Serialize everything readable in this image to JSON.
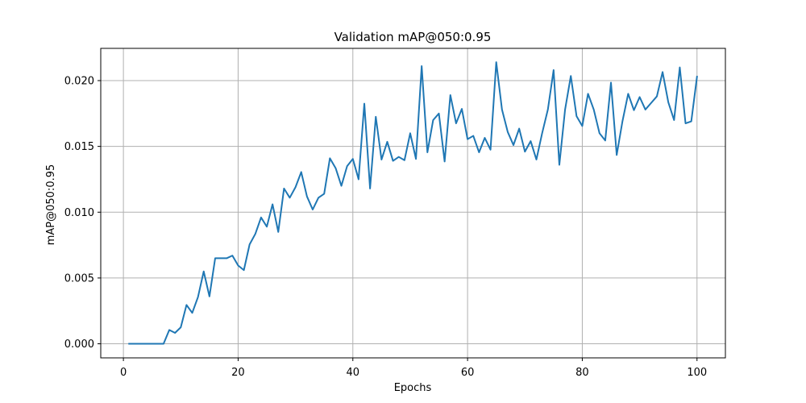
{
  "chart_data": {
    "type": "line",
    "title": "Validation mAP@050:0.95",
    "xlabel": "Epochs",
    "ylabel": "mAP@050:0.95",
    "xlim": [
      -3.95,
      104.95
    ],
    "ylim": [
      -0.00107,
      0.02245
    ],
    "x_ticks": [
      0,
      20,
      40,
      60,
      80,
      100
    ],
    "x_tick_labels": [
      "0",
      "20",
      "40",
      "60",
      "80",
      "100"
    ],
    "y_ticks": [
      0.0,
      0.005,
      0.01,
      0.015,
      0.02
    ],
    "y_tick_labels": [
      "0.000",
      "0.005",
      "0.010",
      "0.015",
      "0.020"
    ],
    "grid": true,
    "series": [
      {
        "color": "#1f77b4",
        "x": [
          1,
          2,
          3,
          4,
          5,
          6,
          7,
          8,
          9,
          10,
          11,
          12,
          13,
          14,
          15,
          16,
          17,
          18,
          19,
          20,
          21,
          22,
          23,
          24,
          25,
          26,
          27,
          28,
          29,
          30,
          31,
          32,
          33,
          34,
          35,
          36,
          37,
          38,
          39,
          40,
          41,
          42,
          43,
          44,
          45,
          46,
          47,
          48,
          49,
          50,
          51,
          52,
          53,
          54,
          55,
          56,
          57,
          58,
          59,
          60,
          61,
          62,
          63,
          64,
          65,
          66,
          67,
          68,
          69,
          70,
          71,
          72,
          73,
          74,
          75,
          76,
          77,
          78,
          79,
          80,
          81,
          82,
          83,
          84,
          85,
          86,
          87,
          88,
          89,
          90,
          91,
          92,
          93,
          94,
          95,
          96,
          97,
          98,
          99,
          100
        ],
        "y": [
          0,
          0,
          0,
          0,
          0,
          0,
          0,
          0.00105,
          0.00083,
          0.00125,
          0.00295,
          0.00235,
          0.00355,
          0.0055,
          0.0036,
          0.0065,
          0.0065,
          0.0065,
          0.0067,
          0.00595,
          0.0056,
          0.00755,
          0.00835,
          0.0096,
          0.0089,
          0.0106,
          0.0085,
          0.0118,
          0.0111,
          0.0119,
          0.01305,
          0.0112,
          0.0102,
          0.0111,
          0.0114,
          0.0141,
          0.01335,
          0.012,
          0.0135,
          0.01405,
          0.0125,
          0.01825,
          0.0118,
          0.01725,
          0.014,
          0.01535,
          0.0139,
          0.0142,
          0.01395,
          0.016,
          0.01405,
          0.0211,
          0.01455,
          0.017,
          0.0175,
          0.01385,
          0.0189,
          0.01675,
          0.01785,
          0.01555,
          0.0158,
          0.01455,
          0.01565,
          0.01475,
          0.0214,
          0.0178,
          0.0161,
          0.0151,
          0.01635,
          0.0146,
          0.0154,
          0.014,
          0.016,
          0.0178,
          0.0208,
          0.0136,
          0.0178,
          0.02035,
          0.0173,
          0.01655,
          0.019,
          0.0178,
          0.016,
          0.01545,
          0.01985,
          0.01435,
          0.0169,
          0.019,
          0.01775,
          0.01875,
          0.0178,
          0.0183,
          0.0188,
          0.02065,
          0.01835,
          0.017,
          0.021,
          0.01675,
          0.0169,
          0.0203
        ]
      }
    ]
  }
}
